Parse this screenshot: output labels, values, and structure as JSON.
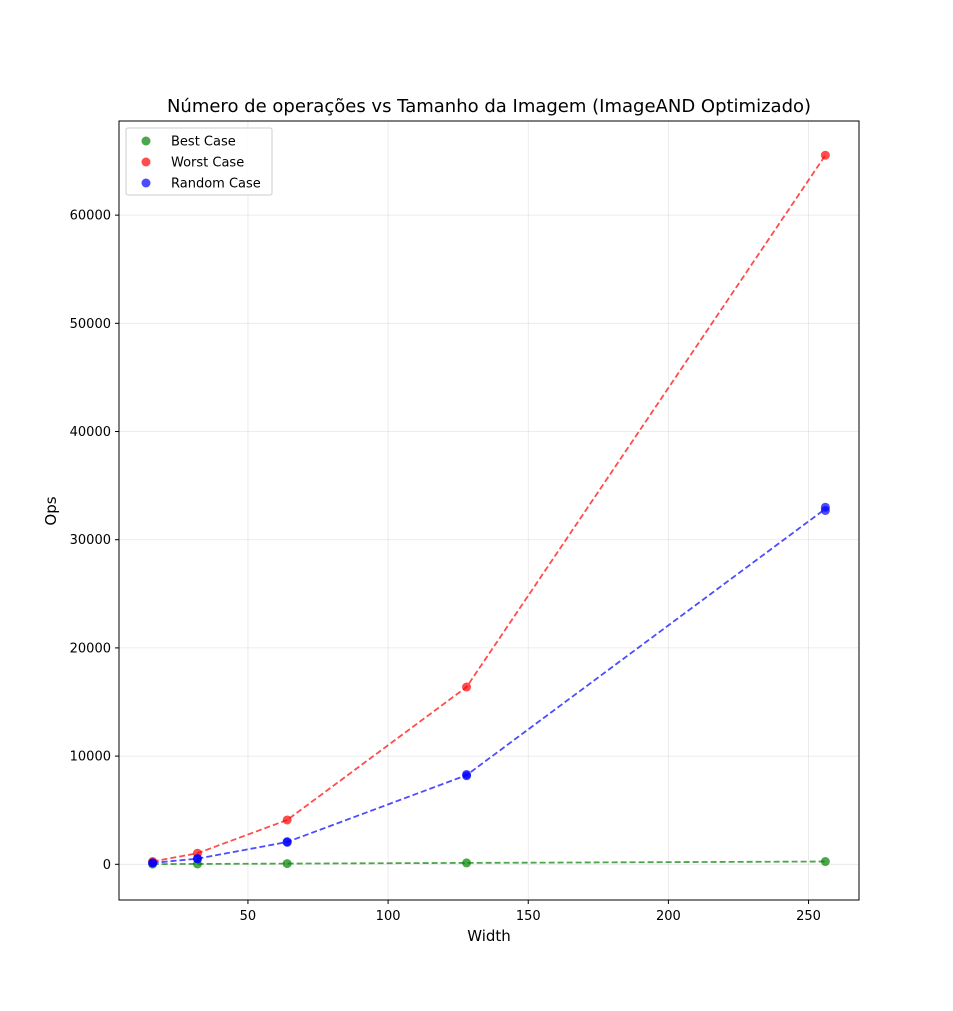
{
  "chart_data": {
    "type": "scatter",
    "title": "Número de operações vs Tamanho da Imagem (ImageAND Optimizado)",
    "xlabel": "Width",
    "ylabel": "Ops",
    "xlim": [
      4,
      268
    ],
    "ylim": [
      -3300,
      68700
    ],
    "xticks": [
      50,
      100,
      150,
      200,
      250
    ],
    "yticks": [
      0,
      10000,
      20000,
      30000,
      40000,
      50000,
      60000
    ],
    "grid": true,
    "legend_position": "top-left",
    "series": [
      {
        "name": "Best Case",
        "color": "#008000",
        "points": [
          [
            16,
            16
          ],
          [
            32,
            32
          ],
          [
            64,
            64
          ],
          [
            128,
            128
          ],
          [
            256,
            256
          ]
        ],
        "line": [
          [
            16,
            16
          ],
          [
            32,
            32
          ],
          [
            64,
            64
          ],
          [
            128,
            128
          ],
          [
            256,
            256
          ]
        ]
      },
      {
        "name": "Worst Case",
        "color": "#ff0000",
        "points": [
          [
            16,
            256
          ],
          [
            32,
            1024
          ],
          [
            64,
            4096
          ],
          [
            128,
            16384
          ],
          [
            256,
            65536
          ]
        ],
        "line": [
          [
            16,
            256
          ],
          [
            32,
            1024
          ],
          [
            64,
            4096
          ],
          [
            128,
            16384
          ],
          [
            256,
            65536
          ]
        ]
      },
      {
        "name": "Random Case",
        "color": "#0000ff",
        "points": [
          [
            16,
            120
          ],
          [
            16,
            140
          ],
          [
            32,
            500
          ],
          [
            32,
            540
          ],
          [
            64,
            2030
          ],
          [
            64,
            2090
          ],
          [
            128,
            8180
          ],
          [
            128,
            8300
          ],
          [
            256,
            32700
          ],
          [
            256,
            33000
          ]
        ],
        "line": [
          [
            16,
            130
          ],
          [
            32,
            520
          ],
          [
            64,
            2060
          ],
          [
            128,
            8240
          ],
          [
            256,
            32850
          ]
        ]
      }
    ]
  }
}
